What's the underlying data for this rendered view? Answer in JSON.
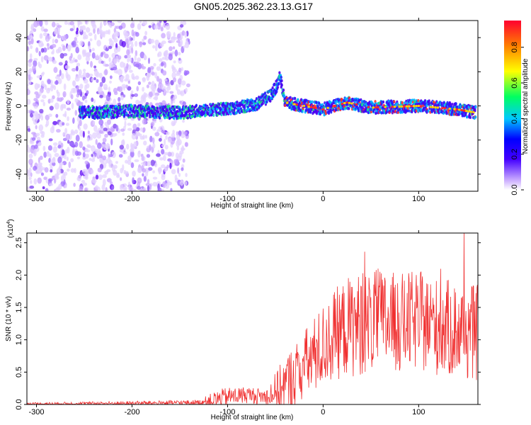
{
  "title": "GN05.2025.362.23.13.G17",
  "chart_data": [
    {
      "type": "heatmap",
      "name": "spectrogram",
      "xlabel": "Height of straight line (km)",
      "ylabel": "Frequency (Hz)",
      "xlim": [
        -310,
        162
      ],
      "ylim": [
        -50,
        50
      ],
      "xticks": [
        -300,
        -200,
        -100,
        0,
        100
      ],
      "xtick_labels": [
        "-300",
        "-200",
        "-100",
        "0",
        "100"
      ],
      "yticks": [
        -40,
        -20,
        0,
        20,
        40
      ],
      "ytick_labels": [
        "-40",
        "-20",
        "0",
        "20",
        "40"
      ],
      "ridge": {
        "x": [
          -255,
          -200,
          -150,
          -130,
          -110,
          -90,
          -70,
          -55,
          -48,
          -45,
          -40,
          -20,
          0,
          25,
          50,
          100,
          140,
          160
        ],
        "y": [
          -4,
          -3,
          -4,
          -3,
          -2,
          -1,
          1,
          6,
          12,
          18,
          2,
          0,
          -2,
          2,
          -1,
          0,
          -2,
          -4
        ]
      },
      "noise_region": [
        -310,
        -140
      ],
      "colorbar": {
        "label": "Normalized spectral amplitude",
        "range": [
          0,
          0.95
        ],
        "ticks": [
          0.0,
          0.2,
          0.4,
          0.6,
          0.8
        ],
        "tick_labels": [
          "0.0",
          "0.2",
          "0.4",
          "0.6",
          "0.8"
        ]
      }
    },
    {
      "type": "line",
      "name": "snr",
      "xlabel": "Height of straight line (km)",
      "ylabel": "SNR (10 * v/v)",
      "scale_label": "(x10",
      "scale_exponent": "4",
      "scale_suffix": ")",
      "color": "#f03030",
      "xlim": [
        -310,
        162
      ],
      "ylim": [
        0,
        2.65
      ],
      "xticks": [
        -300,
        -200,
        -100,
        0,
        100
      ],
      "xtick_labels": [
        "-300",
        "-200",
        "-100",
        "0",
        "100"
      ],
      "yticks": [
        0.0,
        0.5,
        1.0,
        1.5,
        2.0,
        2.5
      ],
      "ytick_labels": [
        "0.0",
        "0.5",
        "1.0",
        "1.5",
        "2.0",
        "2.5"
      ],
      "trend": {
        "x": [
          -310,
          -200,
          -130,
          -110,
          -100,
          -80,
          -60,
          -45,
          -40,
          -30,
          -20,
          -10,
          0,
          10,
          25,
          40,
          60,
          80,
          100,
          120,
          140,
          162
        ],
        "y": [
          0.01,
          0.02,
          0.03,
          0.08,
          0.12,
          0.15,
          0.12,
          0.25,
          0.3,
          0.45,
          0.6,
          0.75,
          0.9,
          1.05,
          1.2,
          1.25,
          1.3,
          1.25,
          1.3,
          1.2,
          1.15,
          1.1
        ]
      },
      "jitter": {
        "x": [
          -310,
          -130,
          -110,
          -60,
          -40,
          -10,
          30,
          162
        ],
        "amp": [
          0.02,
          0.04,
          0.15,
          0.12,
          0.45,
          0.6,
          0.8,
          0.75
        ]
      }
    }
  ]
}
